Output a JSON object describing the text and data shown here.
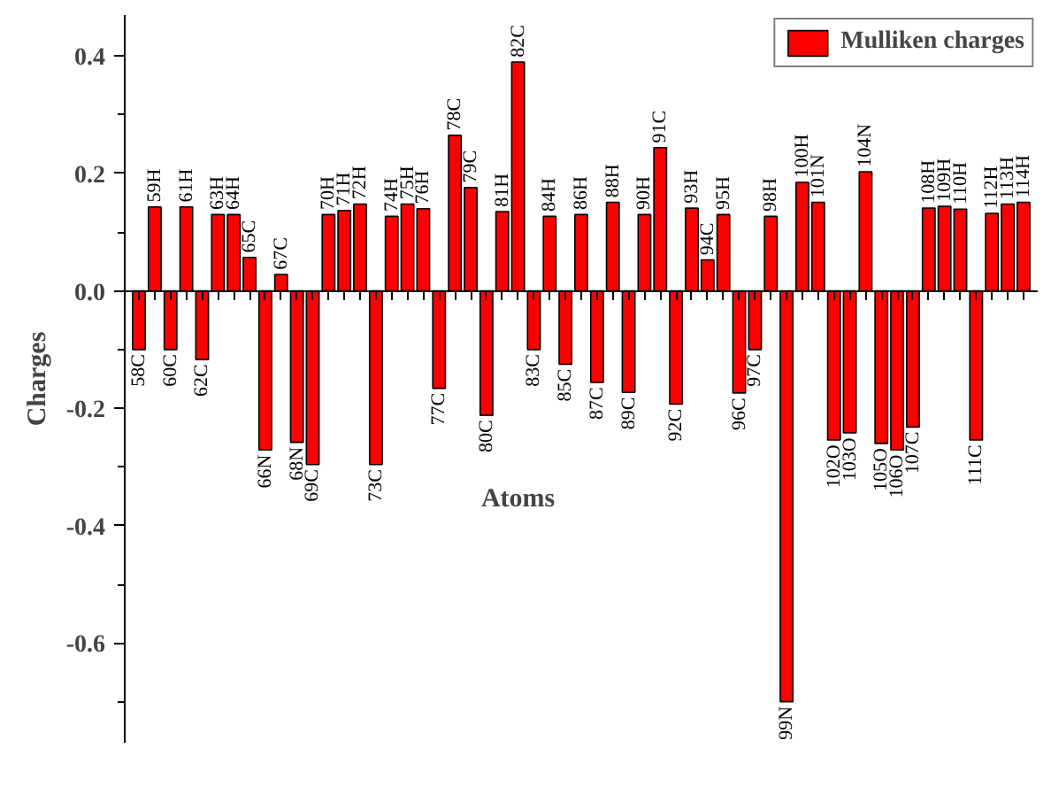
{
  "chart_data": {
    "type": "bar",
    "xlabel": "Atoms",
    "ylabel": "Charges",
    "categories": [
      "58C",
      "59H",
      "60C",
      "61H",
      "62C",
      "63H",
      "64H",
      "65C",
      "66N",
      "67C",
      "68N",
      "69C",
      "70H",
      "71H",
      "72H",
      "73C",
      "74H",
      "75H",
      "76H",
      "77C",
      "78C",
      "79C",
      "80C",
      "81H",
      "82C",
      "83C",
      "84H",
      "85C",
      "86H",
      "87C",
      "88H",
      "89C",
      "90H",
      "91C",
      "92C",
      "93H",
      "94C",
      "95H",
      "96C",
      "97C",
      "98H",
      "99N",
      "100H",
      "101N",
      "102O",
      "103O",
      "104N",
      "105O",
      "106O",
      "107C",
      "108H",
      "109H",
      "110H",
      "111C",
      "112H",
      "113H",
      "114H"
    ],
    "series": [
      {
        "name": "Mulliken charges",
        "color": "#ff0000",
        "values": [
          -0.1,
          0.143,
          -0.1,
          0.143,
          -0.117,
          0.13,
          0.13,
          0.057,
          -0.271,
          0.028,
          -0.258,
          -0.296,
          0.13,
          0.137,
          0.148,
          -0.296,
          0.127,
          0.148,
          0.14,
          -0.166,
          0.265,
          0.176,
          -0.212,
          0.135,
          0.39,
          -0.1,
          0.127,
          -0.125,
          0.13,
          -0.156,
          0.151,
          -0.173,
          0.13,
          0.244,
          -0.193,
          0.141,
          0.053,
          0.13,
          -0.174,
          -0.1,
          0.127,
          -0.7,
          0.185,
          0.151,
          -0.254,
          -0.242,
          0.203,
          -0.26,
          -0.271,
          -0.232,
          0.141,
          0.144,
          0.139,
          -0.254,
          0.132,
          0.148,
          0.151
        ]
      }
    ],
    "ylim": [
      -0.77,
      0.47
    ],
    "yticks": [
      -0.6,
      -0.4,
      -0.2,
      {
        "value": 0,
        "label": "0.0"
      },
      0.2,
      0.4
    ],
    "legend": "top right"
  }
}
